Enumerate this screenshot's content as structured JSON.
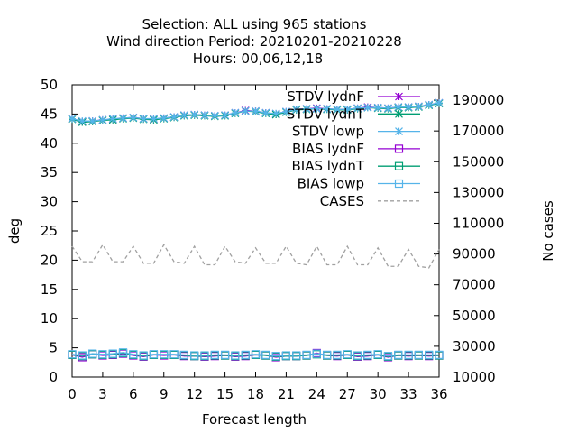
{
  "chart_data": {
    "type": "line",
    "title": [
      "Selection: ALL using   965 stations",
      "Wind direction   Period: 20210201-20210228",
      "Hours:  00,06,12,18"
    ],
    "xlabel": "Forecast length",
    "ylabel": "deg",
    "y2label": "No cases",
    "xlim": [
      0,
      36
    ],
    "ylim": [
      0,
      50
    ],
    "y2lim": [
      10000,
      200000
    ],
    "xticks": [
      0,
      3,
      6,
      9,
      12,
      15,
      18,
      21,
      24,
      27,
      30,
      33,
      36
    ],
    "yticks": [
      0,
      5,
      10,
      15,
      20,
      25,
      30,
      35,
      40,
      45,
      50
    ],
    "y2ticks": [
      10000,
      30000,
      50000,
      70000,
      90000,
      110000,
      130000,
      150000,
      170000,
      190000
    ],
    "x": [
      0,
      1,
      2,
      3,
      4,
      5,
      6,
      7,
      8,
      9,
      10,
      11,
      12,
      13,
      14,
      15,
      16,
      17,
      18,
      19,
      20,
      21,
      22,
      23,
      24,
      25,
      26,
      27,
      28,
      29,
      30,
      31,
      32,
      33,
      34,
      35,
      36
    ],
    "series": [
      {
        "name": "STDV lydnF",
        "color": "#9400d3",
        "marker": "star",
        "axis": "y",
        "values": [
          44.2,
          43.7,
          43.8,
          44.0,
          44.1,
          44.3,
          44.4,
          44.2,
          44.1,
          44.3,
          44.5,
          44.8,
          44.9,
          44.8,
          44.7,
          44.8,
          45.2,
          45.6,
          45.5,
          45.2,
          45.0,
          45.4,
          45.8,
          45.9,
          46.0,
          45.9,
          45.8,
          45.8,
          46.0,
          46.2,
          46.1,
          46.0,
          46.2,
          46.2,
          46.3,
          46.6,
          46.9
        ]
      },
      {
        "name": "STDV lydnT",
        "color": "#009e73",
        "marker": "star",
        "axis": "y",
        "values": [
          44.1,
          43.6,
          43.7,
          43.9,
          44.0,
          44.2,
          44.3,
          44.1,
          44.0,
          44.2,
          44.4,
          44.7,
          44.8,
          44.7,
          44.6,
          44.7,
          45.1,
          45.5,
          45.4,
          45.1,
          44.9,
          45.3,
          45.7,
          45.8,
          45.9,
          45.8,
          45.7,
          45.7,
          45.9,
          46.1,
          46.0,
          45.9,
          46.1,
          46.1,
          46.2,
          46.5,
          46.8
        ]
      },
      {
        "name": "STDV lowp",
        "color": "#56b4e9",
        "marker": "star",
        "axis": "y",
        "values": [
          44.2,
          43.8,
          43.8,
          44.0,
          44.2,
          44.3,
          44.4,
          44.2,
          44.2,
          44.3,
          44.5,
          44.8,
          44.9,
          44.8,
          44.7,
          44.8,
          45.2,
          45.5,
          45.5,
          45.2,
          45.1,
          45.4,
          45.8,
          45.9,
          45.9,
          45.9,
          45.8,
          45.8,
          46.0,
          46.1,
          46.1,
          46.0,
          46.2,
          46.2,
          46.3,
          46.6,
          46.9
        ]
      },
      {
        "name": "BIAS lydnF",
        "color": "#9400d3",
        "marker": "square",
        "axis": "y",
        "values": [
          3.8,
          3.4,
          3.9,
          3.7,
          3.8,
          4.0,
          3.7,
          3.5,
          3.8,
          3.7,
          3.8,
          3.6,
          3.6,
          3.5,
          3.6,
          3.7,
          3.5,
          3.6,
          3.8,
          3.7,
          3.4,
          3.6,
          3.6,
          3.7,
          4.1,
          3.7,
          3.6,
          3.8,
          3.5,
          3.6,
          3.8,
          3.4,
          3.7,
          3.6,
          3.7,
          3.6,
          3.7
        ]
      },
      {
        "name": "BIAS lydnT",
        "color": "#009e73",
        "marker": "square",
        "axis": "y",
        "values": [
          3.8,
          3.6,
          3.9,
          3.8,
          3.9,
          4.1,
          3.8,
          3.6,
          3.8,
          3.8,
          3.8,
          3.7,
          3.6,
          3.6,
          3.7,
          3.7,
          3.6,
          3.7,
          3.8,
          3.7,
          3.5,
          3.6,
          3.6,
          3.7,
          3.9,
          3.7,
          3.7,
          3.8,
          3.6,
          3.7,
          3.8,
          3.5,
          3.7,
          3.7,
          3.7,
          3.7,
          3.7
        ]
      },
      {
        "name": "BIAS lowp",
        "color": "#56b4e9",
        "marker": "square",
        "axis": "y",
        "values": [
          3.9,
          3.7,
          4.0,
          3.9,
          4.0,
          4.2,
          3.9,
          3.7,
          3.9,
          3.9,
          3.9,
          3.8,
          3.7,
          3.7,
          3.8,
          3.8,
          3.7,
          3.8,
          3.9,
          3.8,
          3.6,
          3.7,
          3.7,
          3.8,
          4.0,
          3.8,
          3.8,
          3.9,
          3.7,
          3.8,
          3.9,
          3.6,
          3.8,
          3.8,
          3.8,
          3.8,
          3.8
        ]
      },
      {
        "name": "CASES",
        "color": "#a0a0a0",
        "dash": true,
        "axis": "y2",
        "values": [
          95000,
          85000,
          85000,
          96000,
          85000,
          85000,
          95000,
          84000,
          84000,
          96000,
          85000,
          84000,
          95000,
          83000,
          83000,
          95000,
          85000,
          84000,
          94000,
          84000,
          84000,
          95000,
          84000,
          83000,
          95000,
          83000,
          83000,
          95000,
          83000,
          83000,
          94000,
          82000,
          82000,
          93000,
          82000,
          81000,
          93000
        ]
      }
    ]
  }
}
